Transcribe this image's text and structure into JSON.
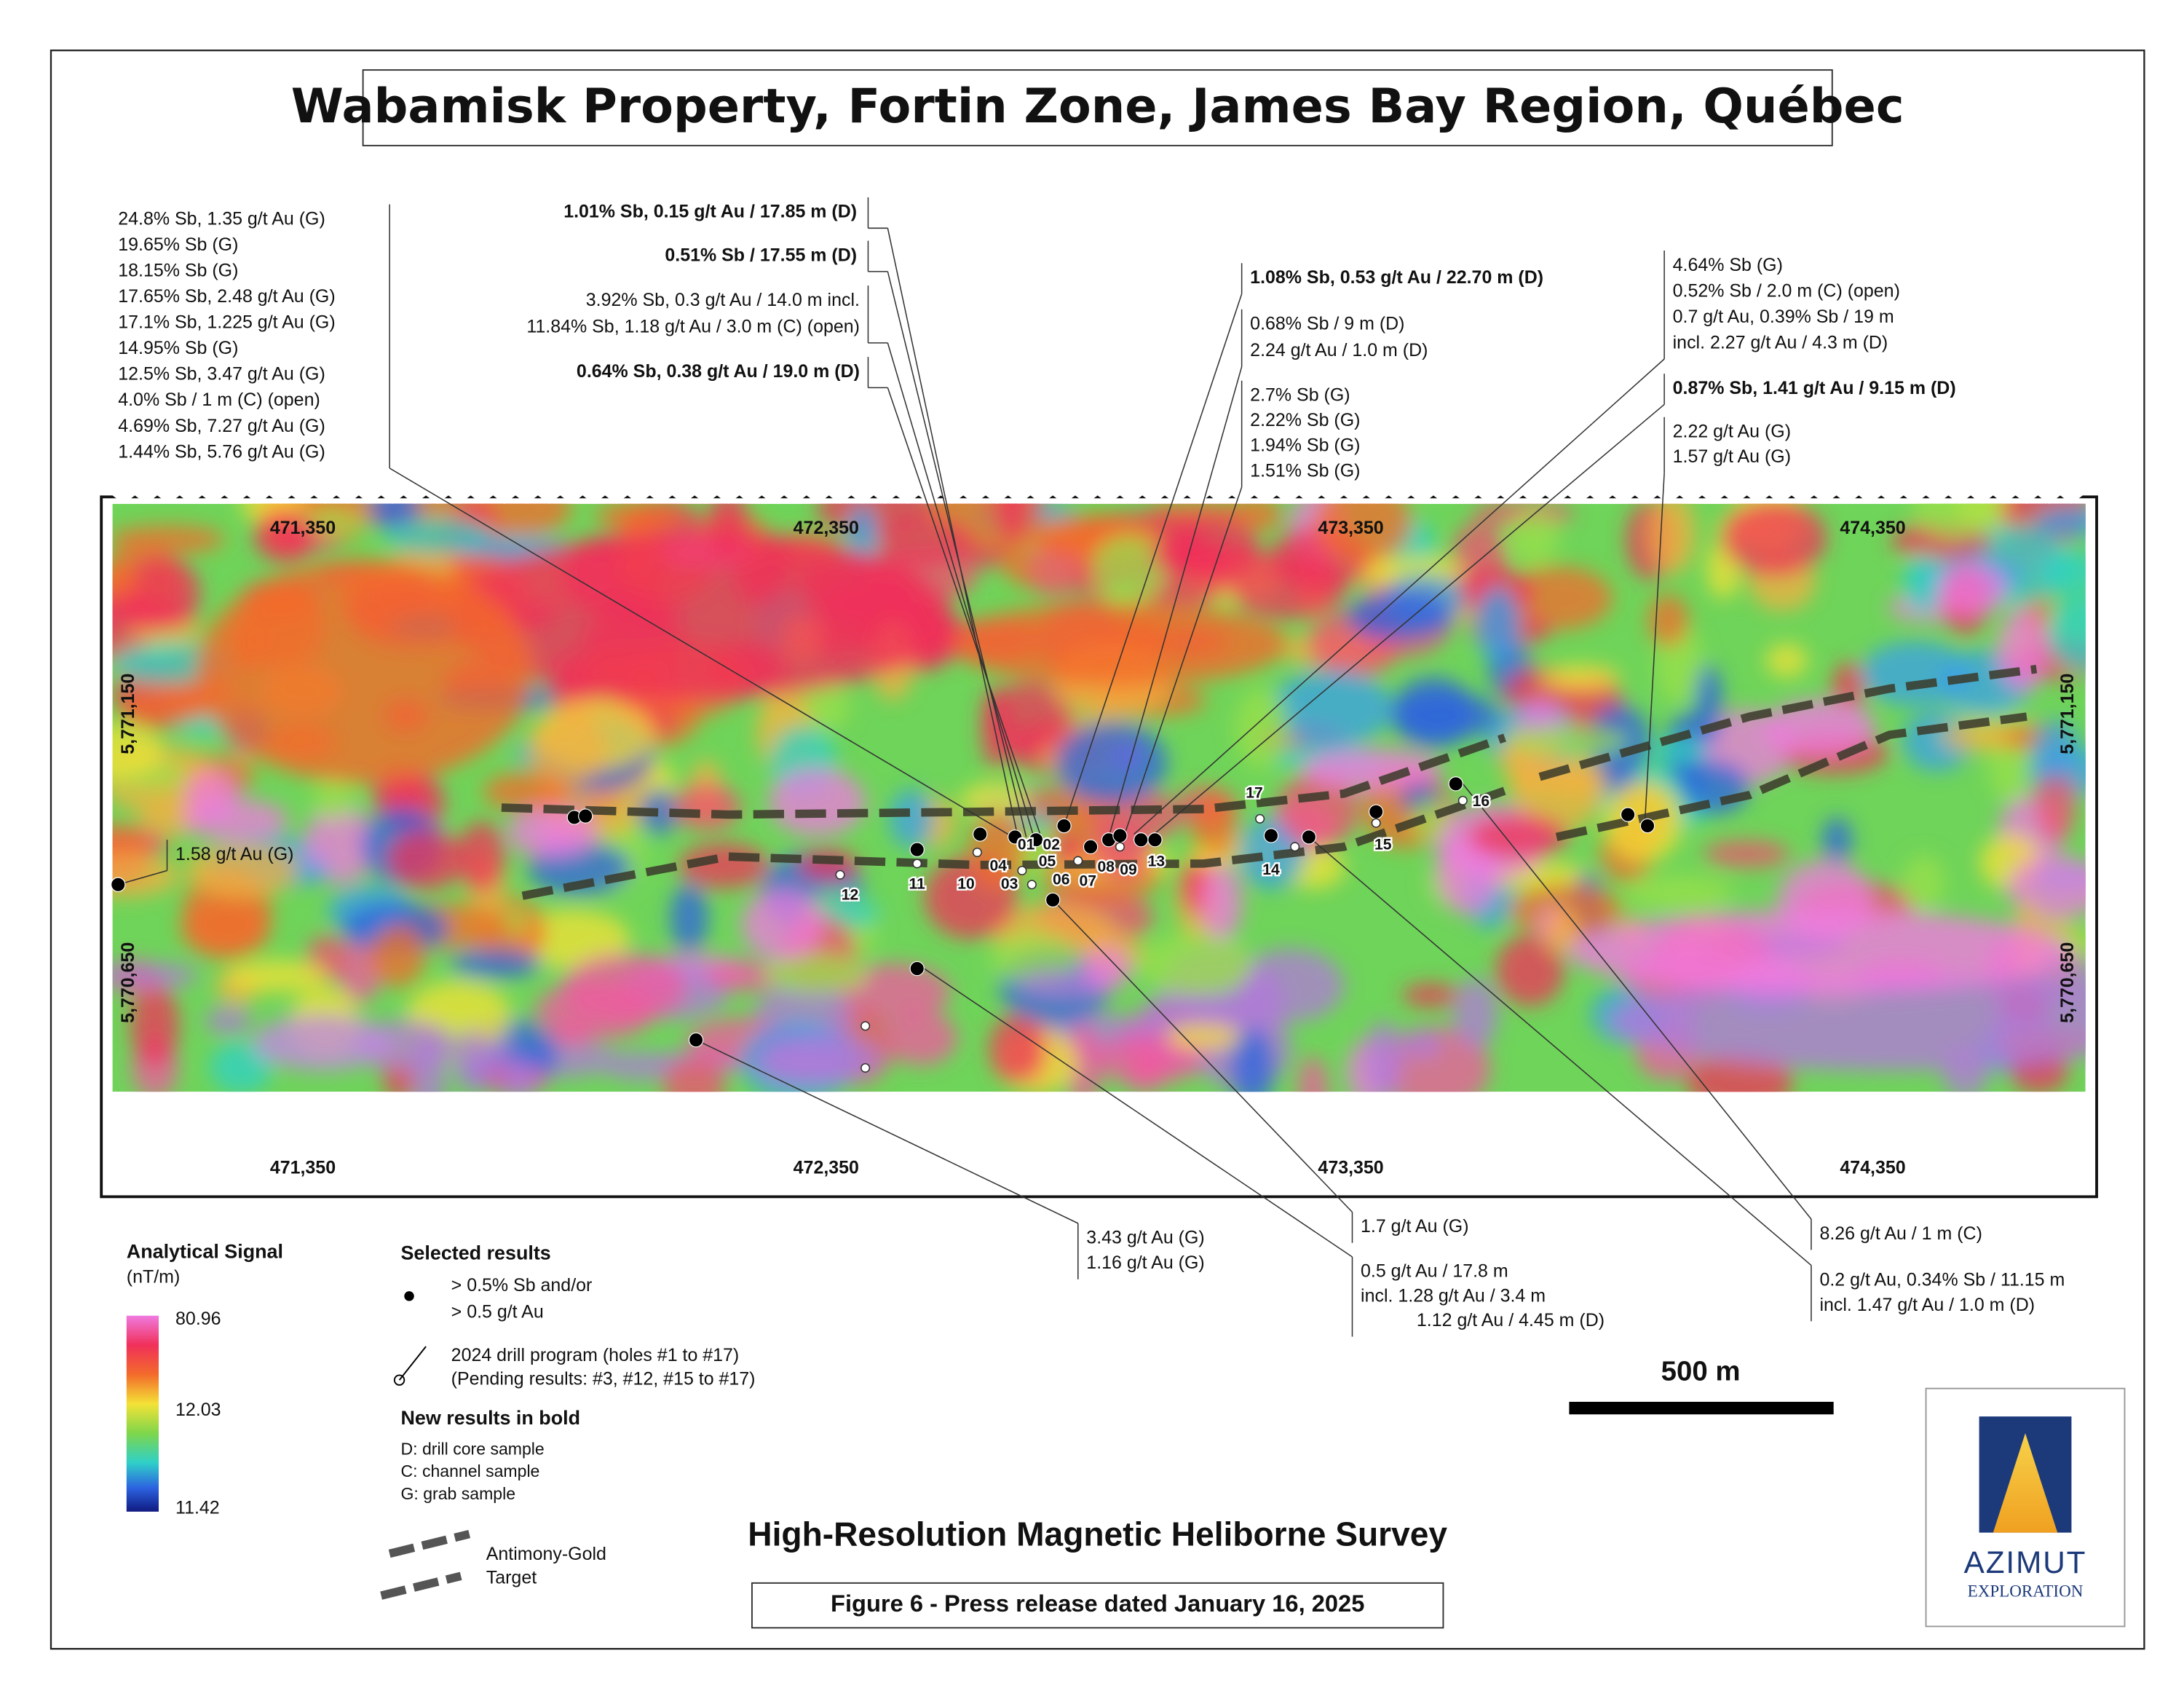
{
  "header": {
    "title": "Wabamisk Property, Fortin Zone, James Bay Region, Québec"
  },
  "annotations": [
    {
      "lines": [
        "24.8% Sb, 1.35 g/t Au  (G)",
        "19.65% Sb (G)",
        "18.15% Sb (G)",
        "17.65% Sb, 2.48 g/t Au (G)",
        "17.1% Sb, 1.225 g/t Au (G)",
        "14.95% Sb (G)",
        "12.5% Sb, 3.47 g/t Au (G)",
        "4.0% Sb / 1 m (C) (open)",
        "4.69% Sb, 7.27 g/t Au (G)",
        "1.44% Sb, 5.76 g/t Au (G)"
      ],
      "bold": false
    },
    {
      "lines": [
        "1.01% Sb, 0.15 g/t Au / 17.85 m (D)"
      ],
      "bold": true
    },
    {
      "lines": [
        "0.51% Sb / 17.55 m (D)"
      ],
      "bold": true
    },
    {
      "lines": [
        "3.92% Sb, 0.3 g/t Au / 14.0 m incl.",
        "11.84% Sb, 1.18 g/t Au / 3.0 m (C) (open)"
      ],
      "bold": false
    },
    {
      "lines": [
        "0.64% Sb, 0.38 g/t Au / 19.0 m (D)"
      ],
      "bold": true
    },
    {
      "lines": [
        "1.08% Sb, 0.53 g/t Au / 22.70 m (D)"
      ],
      "bold": true
    },
    {
      "lines": [
        "0.68% Sb / 9 m (D)",
        "2.24 g/t Au / 1.0 m (D)"
      ],
      "bold": false
    },
    {
      "lines": [
        "2.7% Sb (G)",
        "2.22% Sb (G)",
        "1.94% Sb (G)",
        "1.51% Sb (G)"
      ],
      "bold": false
    },
    {
      "lines": [
        "4.64% Sb (G)",
        "0.52% Sb / 2.0 m (C) (open)",
        "0.7 g/t Au, 0.39% Sb / 19 m",
        "incl. 2.27 g/t Au / 4.3 m (D)"
      ],
      "bold": false
    },
    {
      "lines": [
        "0.87% Sb, 1.41 g/t Au / 9.15 m (D)"
      ],
      "bold": true
    },
    {
      "lines": [
        "2.22 g/t Au (G)",
        "1.57 g/t Au (G)"
      ],
      "bold": false
    },
    {
      "lines": [
        "1.58 g/t Au (G)"
      ],
      "bold": false
    },
    {
      "lines": [
        "3.43 g/t Au (G)",
        "1.16 g/t Au (G)"
      ],
      "bold": false
    },
    {
      "lines": [
        "1.7 g/t Au (G)"
      ],
      "bold": false
    },
    {
      "lines": [
        "0.5 g/t Au / 17.8 m",
        "incl. 1.28 g/t Au / 3.4 m",
        "1.12 g/t Au / 4.45 m (D)"
      ],
      "bold": false
    },
    {
      "lines": [
        "8.26 g/t Au / 1 m (C)"
      ],
      "bold": false
    },
    {
      "lines": [
        "0.2 g/t Au, 0.34% Sb / 11.15 m",
        "incl. 1.47 g/t Au / 1.0 m (D)"
      ],
      "bold": false
    }
  ],
  "map": {
    "eastings": [
      "471,350",
      "472,350",
      "473,350",
      "474,350"
    ],
    "northings": [
      "5,771,150",
      "5,770,650"
    ],
    "holes": [
      "01",
      "02",
      "03",
      "04",
      "05",
      "06",
      "07",
      "08",
      "09",
      "10",
      "11",
      "12",
      "13",
      "14",
      "15",
      "16",
      "17"
    ]
  },
  "legend": {
    "signal_title": "Analytical Signal",
    "signal_unit": "(nT/m)",
    "scale_labels": [
      "80.96",
      "12.03",
      "11.42"
    ],
    "selected_title": "Selected results",
    "selected_lines": [
      "> 0.5% Sb and/or",
      "> 0.5 g/t Au"
    ],
    "drill_lines": [
      "2024 drill program (holes #1 to #17)",
      "(Pending results: #3, #12, #15 to #17)"
    ],
    "new_results": "New results in bold",
    "sample_types": [
      "D: drill core sample",
      "C: channel sample",
      "G: grab sample"
    ],
    "target_lines": [
      "Antimony-Gold",
      "Target"
    ]
  },
  "scale_bar": "500 m",
  "survey_title": "High-Resolution Magnetic Heliborne Survey",
  "caption": "Figure 6 - Press release dated January 16, 2025",
  "logo": {
    "name": "AZIMUT",
    "sub": "EXPLORATION"
  }
}
